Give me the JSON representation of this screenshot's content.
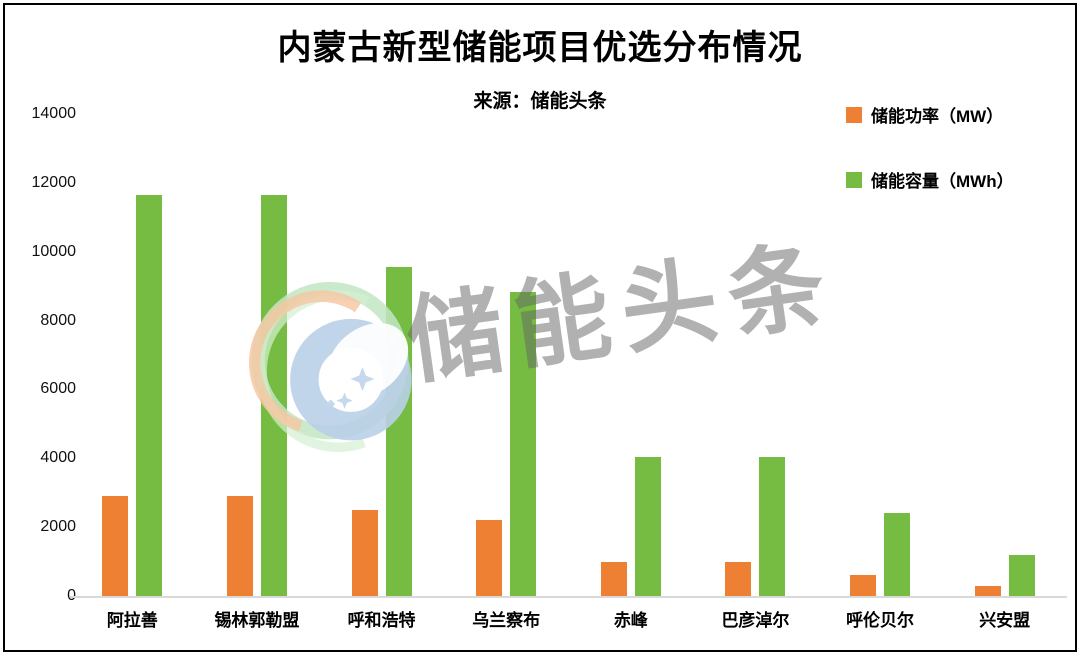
{
  "header": {
    "title": "内蒙古新型储能项目优选分布情况",
    "subtitle": "来源：储能头条"
  },
  "watermark": {
    "text": "储能头条",
    "logo": "energy-storage-brand-logo"
  },
  "colors": {
    "power": "#ED8033",
    "capacity": "#76BC43",
    "baseline": "#d9d9d9",
    "watermark_gray": "rgba(100,100,100,0.5)"
  },
  "chart_data": {
    "type": "bar",
    "title": "内蒙古新型储能项目优选分布情况",
    "subtitle": "来源：储能头条",
    "categories": [
      "阿拉善",
      "锡林郭勒盟",
      "呼和浩特",
      "乌兰察布",
      "赤峰",
      "巴彦淖尔",
      "呼伦贝尔",
      "兴安盟"
    ],
    "series": [
      {
        "name": "储能功率（MW）",
        "color": "#ED8033",
        "values": [
          2900,
          2900,
          2500,
          2200,
          1000,
          1000,
          600,
          300
        ]
      },
      {
        "name": "储能容量（MWh）",
        "color": "#76BC43",
        "values": [
          11650,
          11650,
          9550,
          8840,
          4030,
          4030,
          2400,
          1200
        ]
      }
    ],
    "ylim": [
      0,
      14000
    ],
    "yticks": [
      0,
      2000,
      4000,
      6000,
      8000,
      10000,
      12000,
      14000
    ],
    "grid": false,
    "legend_position": "top-right"
  }
}
